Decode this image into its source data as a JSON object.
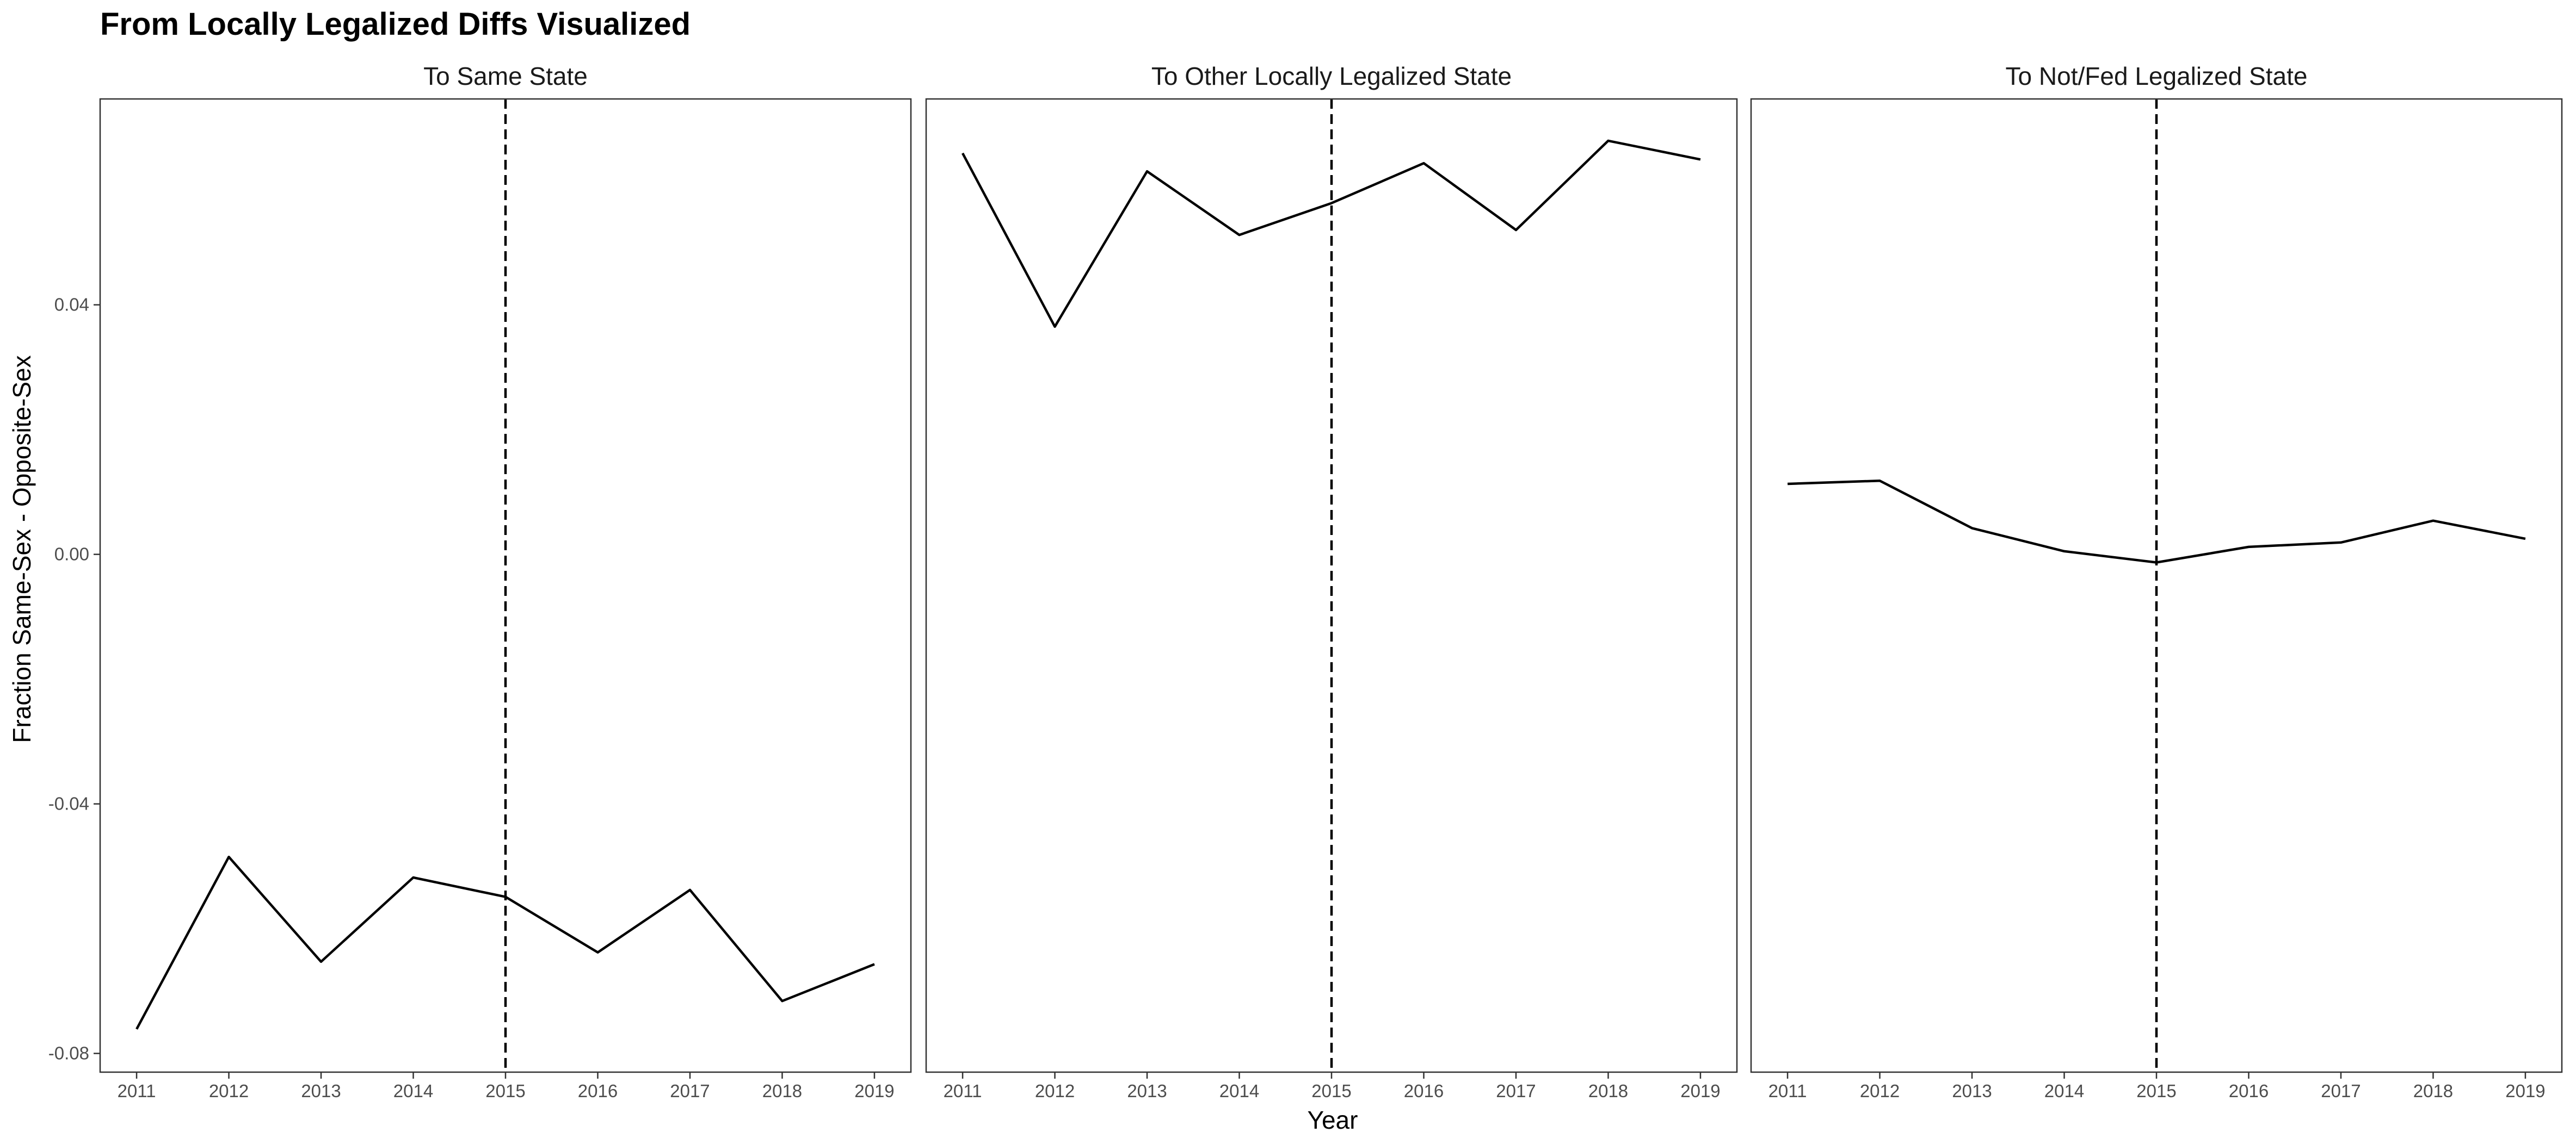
{
  "chart_data": {
    "type": "line",
    "title": "From Locally Legalized Diffs Visualized",
    "xlabel": "Year",
    "ylabel": "Fraction Same-Sex - Opposite-Sex",
    "x": [
      2011,
      2012,
      2013,
      2014,
      2015,
      2016,
      2017,
      2018,
      2019
    ],
    "ylim": [
      -0.083,
      0.073
    ],
    "yticks": [
      -0.08,
      -0.04,
      0.0,
      0.04
    ],
    "ytick_labels": [
      "-0.08",
      "-0.04",
      "0.00",
      "0.04"
    ],
    "vline_x": 2015,
    "vline_style": "dashed",
    "grid": false,
    "panels": [
      {
        "strip_label": "To Same State",
        "values": [
          -0.0761,
          -0.0485,
          -0.0653,
          -0.0518,
          -0.0549,
          -0.0638,
          -0.0538,
          -0.0716,
          -0.0657
        ]
      },
      {
        "strip_label": "To Other Locally Legalized State",
        "values": [
          0.0643,
          0.0365,
          0.0614,
          0.0512,
          0.0563,
          0.0627,
          0.052,
          0.0663,
          0.0633
        ]
      },
      {
        "strip_label": "To Not/Fed Legalized State",
        "values": [
          0.0113,
          0.0118,
          0.0042,
          0.0005,
          -0.0013,
          0.0012,
          0.0019,
          0.0054,
          0.0025
        ]
      }
    ]
  }
}
